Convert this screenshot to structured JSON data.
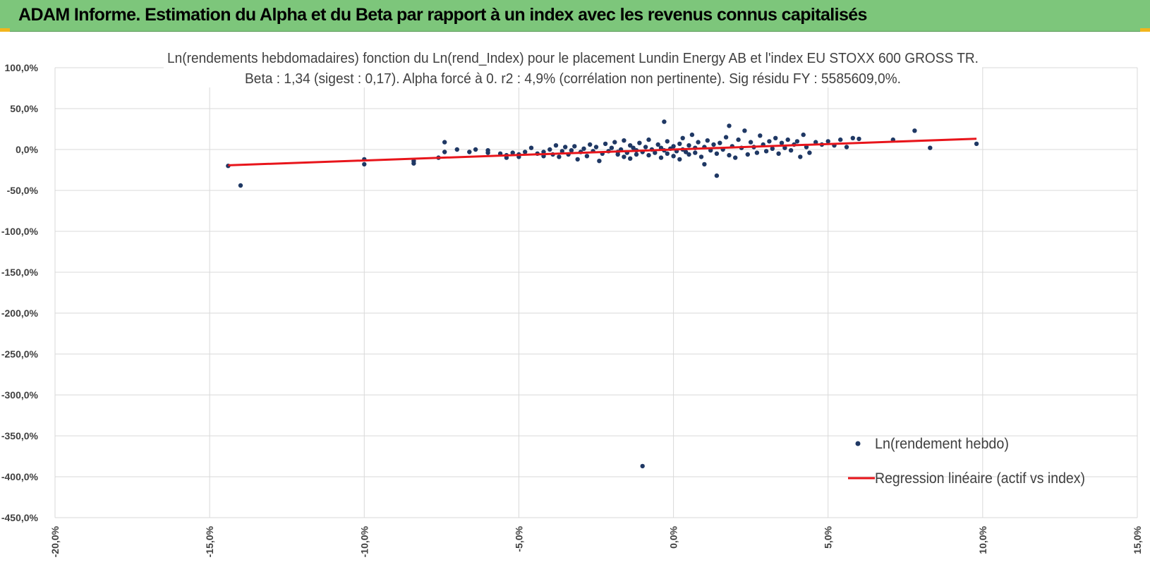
{
  "header": {
    "title": "ADAM Informe. Estimation du Alpha et du Beta par rapport à un index avec les revenus connus capitalisés"
  },
  "colors": {
    "header_bg": "#7dc67b",
    "point": "#1f3864",
    "regression": "#e8151b",
    "grid": "#d9d9d9",
    "accent": "#f2b51c"
  },
  "chart_data": {
    "type": "scatter",
    "title_line1": "Ln(rendements hebdomadaires) fonction du Ln(rend_Index) pour le placement Lundin Energy AB et l'index EU STOXX 600 GROSS TR.",
    "title_line2": "Beta : 1,34 (sigest : 0,17).  Alpha forcé à 0.  r2 : 4,9% (corrélation non pertinente). Sig résidu FY : 5585609,0%.",
    "xlim": [
      -20,
      15
    ],
    "ylim": [
      -450,
      100
    ],
    "x_ticks": [
      -20,
      -15,
      -10,
      -5,
      0,
      5,
      10,
      15
    ],
    "y_ticks": [
      100,
      50,
      0,
      -50,
      -100,
      -150,
      -200,
      -250,
      -300,
      -350,
      -400,
      -450
    ],
    "x_tick_labels": [
      "-20,0%",
      "-15,0%",
      "-10,0%",
      "-5,0%",
      "0,0%",
      "5,0%",
      "10,0%",
      "15,0%"
    ],
    "y_tick_labels": [
      "100,0%",
      "50,0%",
      "0,0%",
      "-50,0%",
      "-100,0%",
      "-150,0%",
      "-200,0%",
      "-250,0%",
      "-300,0%",
      "-350,0%",
      "-400,0%",
      "-450,0%"
    ],
    "legend": {
      "position": "bottom-right",
      "items": [
        "Ln(rendement hebdo)",
        "Regression linéaire (actif vs index)"
      ]
    },
    "regression": {
      "beta": 1.34,
      "alpha": 0,
      "x_range": [
        -14.4,
        9.8
      ]
    },
    "series": [
      {
        "name": "Ln(rendement hebdo)",
        "points": [
          [
            -14.4,
            -20
          ],
          [
            -14.0,
            -44
          ],
          [
            -10.0,
            -12
          ],
          [
            -10.0,
            -18
          ],
          [
            -8.4,
            -14
          ],
          [
            -8.4,
            -17
          ],
          [
            -7.6,
            -10
          ],
          [
            -7.4,
            -3
          ],
          [
            -7.4,
            9
          ],
          [
            -7.0,
            0
          ],
          [
            -6.6,
            -3
          ],
          [
            -6.4,
            0
          ],
          [
            -6.0,
            -1
          ],
          [
            -6.0,
            -4
          ],
          [
            -5.6,
            -5
          ],
          [
            -5.4,
            -7
          ],
          [
            -5.4,
            -10
          ],
          [
            -5.2,
            -4
          ],
          [
            -5.0,
            -9
          ],
          [
            -5.0,
            -6
          ],
          [
            -4.8,
            -3
          ],
          [
            -4.6,
            2
          ],
          [
            -4.4,
            -5
          ],
          [
            -4.2,
            -8
          ],
          [
            -4.2,
            -3
          ],
          [
            -4.0,
            0
          ],
          [
            -3.9,
            -6
          ],
          [
            -3.8,
            5
          ],
          [
            -3.7,
            -9
          ],
          [
            -3.6,
            -2
          ],
          [
            -3.5,
            3
          ],
          [
            -3.4,
            -6
          ],
          [
            -3.3,
            -1
          ],
          [
            -3.2,
            4
          ],
          [
            -3.1,
            -12
          ],
          [
            -3.0,
            -3
          ],
          [
            -2.9,
            1
          ],
          [
            -2.8,
            -8
          ],
          [
            -2.7,
            6
          ],
          [
            -2.6,
            -2
          ],
          [
            -2.5,
            3
          ],
          [
            -2.4,
            -14
          ],
          [
            -2.3,
            -5
          ],
          [
            -2.2,
            7
          ],
          [
            -2.1,
            -2
          ],
          [
            -2.0,
            2
          ],
          [
            -1.9,
            9
          ],
          [
            -1.8,
            -6
          ],
          [
            -1.8,
            -3
          ],
          [
            -1.7,
            0
          ],
          [
            -1.6,
            11
          ],
          [
            -1.6,
            -9
          ],
          [
            -1.5,
            -4
          ],
          [
            -1.4,
            5
          ],
          [
            -1.4,
            -11
          ],
          [
            -1.3,
            2
          ],
          [
            -1.2,
            -1
          ],
          [
            -1.2,
            -6
          ],
          [
            -1.1,
            8
          ],
          [
            -1.0,
            -387
          ],
          [
            -1.0,
            -3
          ],
          [
            -0.9,
            3
          ],
          [
            -0.8,
            12
          ],
          [
            -0.8,
            -7
          ],
          [
            -0.7,
            0
          ],
          [
            -0.6,
            -4
          ],
          [
            -0.5,
            6
          ],
          [
            -0.4,
            -10
          ],
          [
            -0.4,
            2
          ],
          [
            -0.3,
            34
          ],
          [
            -0.3,
            -1
          ],
          [
            -0.2,
            10
          ],
          [
            -0.2,
            -5
          ],
          [
            -0.1,
            1
          ],
          [
            0.0,
            -8
          ],
          [
            0.0,
            4
          ],
          [
            0.1,
            -2
          ],
          [
            0.2,
            7
          ],
          [
            0.2,
            -12
          ],
          [
            0.3,
            14
          ],
          [
            0.3,
            0
          ],
          [
            0.4,
            -3
          ],
          [
            0.5,
            5
          ],
          [
            0.5,
            -6
          ],
          [
            0.6,
            18
          ],
          [
            0.7,
            -4
          ],
          [
            0.7,
            2
          ],
          [
            0.8,
            9
          ],
          [
            0.9,
            -9
          ],
          [
            1.0,
            3
          ],
          [
            1.0,
            -18
          ],
          [
            1.1,
            11
          ],
          [
            1.2,
            -1
          ],
          [
            1.3,
            6
          ],
          [
            1.4,
            -5
          ],
          [
            1.4,
            -32
          ],
          [
            1.5,
            8
          ],
          [
            1.6,
            0
          ],
          [
            1.7,
            15
          ],
          [
            1.8,
            -7
          ],
          [
            1.8,
            29
          ],
          [
            1.9,
            4
          ],
          [
            2.0,
            -10
          ],
          [
            2.1,
            12
          ],
          [
            2.2,
            2
          ],
          [
            2.3,
            23
          ],
          [
            2.4,
            -6
          ],
          [
            2.5,
            9
          ],
          [
            2.6,
            3
          ],
          [
            2.7,
            -4
          ],
          [
            2.8,
            17
          ],
          [
            2.9,
            6
          ],
          [
            3.0,
            -2
          ],
          [
            3.1,
            10
          ],
          [
            3.2,
            1
          ],
          [
            3.3,
            14
          ],
          [
            3.4,
            -5
          ],
          [
            3.5,
            8
          ],
          [
            3.6,
            2
          ],
          [
            3.7,
            12
          ],
          [
            3.8,
            -1
          ],
          [
            3.9,
            6
          ],
          [
            4.0,
            10
          ],
          [
            4.1,
            -9
          ],
          [
            4.2,
            18
          ],
          [
            4.3,
            3
          ],
          [
            4.4,
            -4
          ],
          [
            4.6,
            9
          ],
          [
            4.8,
            6
          ],
          [
            5.0,
            10
          ],
          [
            5.2,
            5
          ],
          [
            5.4,
            12
          ],
          [
            5.6,
            3
          ],
          [
            5.8,
            14
          ],
          [
            6.0,
            13
          ],
          [
            7.1,
            12
          ],
          [
            7.8,
            23
          ],
          [
            8.3,
            2
          ],
          [
            9.8,
            7
          ]
        ]
      }
    ]
  }
}
